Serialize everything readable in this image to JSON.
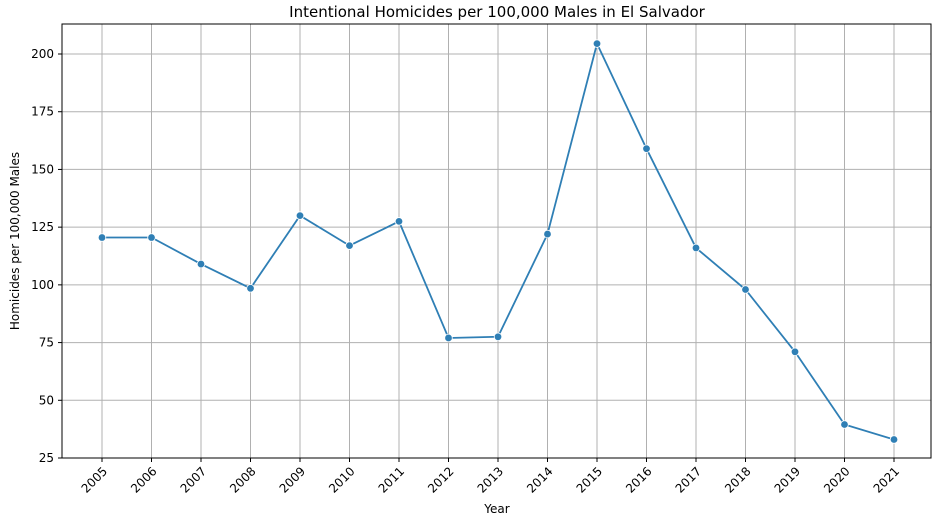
{
  "chart_data": {
    "type": "line",
    "title": "Intentional Homicides per 100,000 Males in El Salvador",
    "xlabel": "Year",
    "ylabel": "Homicides per 100,000 Males",
    "x": [
      "2005",
      "2006",
      "2007",
      "2008",
      "2009",
      "2010",
      "2011",
      "2012",
      "2013",
      "2014",
      "2015",
      "2016",
      "2017",
      "2018",
      "2019",
      "2020",
      "2021"
    ],
    "series": [
      {
        "values": [
          120.5,
          120.5,
          109.0,
          98.5,
          130.0,
          117.0,
          127.5,
          77.0,
          77.5,
          122.0,
          204.5,
          159.0,
          116.0,
          98.0,
          71.0,
          39.5,
          33.0
        ],
        "color": "#2f7fb5"
      }
    ],
    "yticks": [
      25,
      50,
      75,
      100,
      125,
      150,
      175,
      200
    ],
    "ylim": [
      25,
      213
    ],
    "grid": true,
    "x_tick_rotation": "45deg"
  }
}
